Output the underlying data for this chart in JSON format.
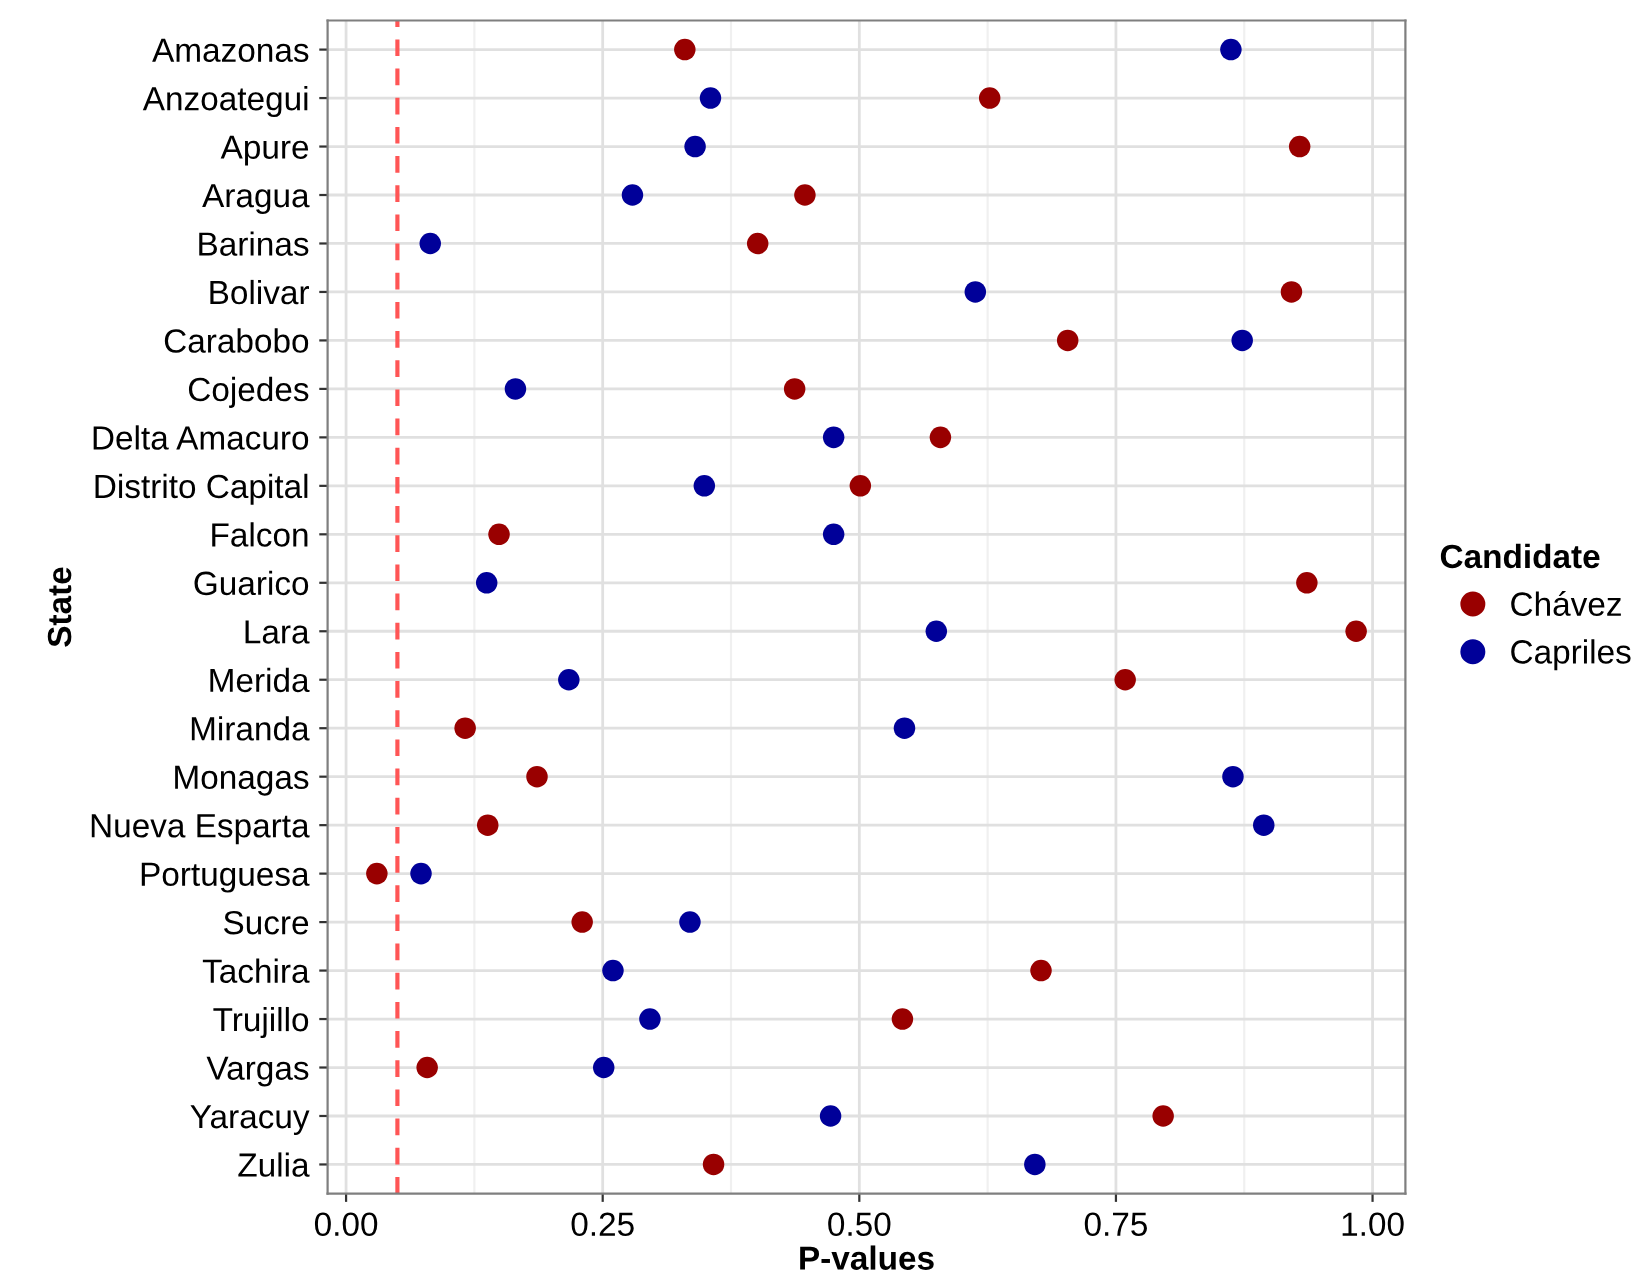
{
  "chart_data": {
    "type": "scatter",
    "orientation": "horizontal",
    "xlabel": "P-values",
    "ylabel": "State",
    "legend_title": "Candidate",
    "legend": "right",
    "categories": [
      "Amazonas",
      "Anzoategui",
      "Apure",
      "Aragua",
      "Barinas",
      "Bolivar",
      "Carabobo",
      "Cojedes",
      "Delta Amacuro",
      "Distrito Capital",
      "Falcon",
      "Guarico",
      "Lara",
      "Merida",
      "Miranda",
      "Monagas",
      "Nueva Esparta",
      "Portuguesa",
      "Sucre",
      "Tachira",
      "Trujillo",
      "Vargas",
      "Yaracuy",
      "Zulia"
    ],
    "series": [
      {
        "name": "Chávez",
        "color": "#990000",
        "values": [
          0.33,
          0.627,
          0.929,
          0.447,
          0.401,
          0.921,
          0.703,
          0.437,
          0.579,
          0.501,
          0.149,
          0.936,
          0.984,
          0.759,
          0.116,
          0.186,
          0.138,
          0.03,
          0.23,
          0.677,
          0.542,
          0.079,
          0.796,
          0.358
        ]
      },
      {
        "name": "Capriles",
        "color": "#000099",
        "values": [
          0.862,
          0.355,
          0.34,
          0.279,
          0.082,
          0.613,
          0.873,
          0.165,
          0.475,
          0.349,
          0.475,
          0.137,
          0.575,
          0.217,
          0.544,
          0.864,
          0.894,
          0.073,
          0.335,
          0.26,
          0.296,
          0.251,
          0.472,
          0.671
        ]
      }
    ],
    "xlim": [
      -0.018,
      1.032
    ],
    "xticks": [
      {
        "value": 0,
        "label": "0.00"
      },
      {
        "value": 0.25,
        "label": "0.25"
      },
      {
        "value": 0.5,
        "label": "0.50"
      },
      {
        "value": 0.75,
        "label": "0.75"
      },
      {
        "value": 1,
        "label": "1.00"
      }
    ],
    "ref_lines": [
      {
        "axis": "x",
        "value": 0.05,
        "color": "#ff5555",
        "line_style": "dashed"
      }
    ],
    "grid": true,
    "marker": "circle"
  }
}
